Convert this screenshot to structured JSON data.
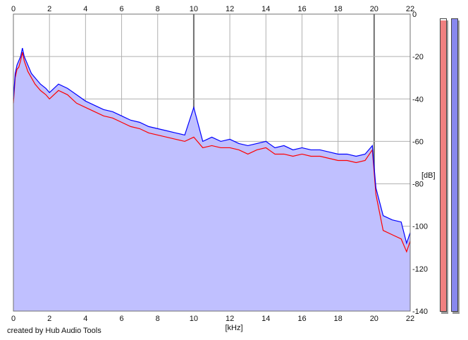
{
  "chart_data": {
    "type": "line",
    "xlabel": "[kHz]",
    "ylabel": "[dB]",
    "xlim": [
      0,
      22
    ],
    "ylim": [
      -140,
      0
    ],
    "x_ticks": [
      0,
      2,
      4,
      6,
      8,
      10,
      12,
      14,
      16,
      18,
      20,
      22
    ],
    "y_ticks": [
      0,
      -20,
      -40,
      -60,
      -80,
      -100,
      -120,
      -140
    ],
    "grid": true,
    "fill_color": "#c0c0ff",
    "series": [
      {
        "color": "#ff0000",
        "x": [
          0,
          0.1,
          0.2,
          0.3,
          0.4,
          0.5,
          0.6,
          0.8,
          1,
          1.2,
          1.5,
          1.8,
          2,
          2.5,
          3,
          3.5,
          4,
          4.5,
          5,
          5.5,
          6,
          6.5,
          7,
          7.5,
          8,
          8.5,
          9,
          9.5,
          10,
          10.5,
          11,
          11.5,
          12,
          12.5,
          13,
          13.5,
          14,
          14.5,
          15,
          15.5,
          16,
          16.5,
          17,
          17.5,
          18,
          18.5,
          19,
          19.5,
          19.9,
          20.1,
          20.5,
          21,
          21.5,
          21.8,
          22
        ],
        "values": [
          -42,
          -30,
          -26,
          -25,
          -22,
          -18,
          -22,
          -27,
          -30,
          -33,
          -36,
          -38,
          -40,
          -36,
          -38,
          -42,
          -44,
          -46,
          -48,
          -49,
          -51,
          -53,
          -54,
          -56,
          -57,
          -58,
          -59,
          -60,
          -58,
          -63,
          -62,
          -63,
          -63,
          -64,
          -66,
          -64,
          -63,
          -66,
          -66,
          -67,
          -66,
          -67,
          -67,
          -68,
          -69,
          -69,
          -70,
          -69,
          -64,
          -85,
          -102,
          -104,
          -106,
          -112,
          -107
        ]
      },
      {
        "color": "#0000ff",
        "x": [
          0,
          0.1,
          0.2,
          0.3,
          0.4,
          0.5,
          0.6,
          0.8,
          1,
          1.2,
          1.5,
          1.8,
          2,
          2.5,
          3,
          3.5,
          4,
          4.5,
          5,
          5.5,
          6,
          6.5,
          7,
          7.5,
          8,
          8.5,
          9,
          9.5,
          10,
          10.5,
          11,
          11.5,
          12,
          12.5,
          13,
          13.5,
          14,
          14.5,
          15,
          15.5,
          16,
          16.5,
          17,
          17.5,
          18,
          18.5,
          19,
          19.5,
          19.9,
          20.1,
          20.5,
          21,
          21.5,
          21.8,
          22
        ],
        "values": [
          -40,
          -28,
          -24,
          -22,
          -20,
          -16,
          -20,
          -24,
          -28,
          -30,
          -33,
          -35,
          -37,
          -33,
          -35,
          -38,
          -41,
          -43,
          -45,
          -46,
          -48,
          -50,
          -51,
          -53,
          -54,
          -55,
          -56,
          -57,
          -44,
          -60,
          -58,
          -60,
          -59,
          -61,
          -62,
          -61,
          -60,
          -63,
          -62,
          -64,
          -63,
          -64,
          -64,
          -65,
          -66,
          -66,
          -67,
          -66,
          -62,
          -82,
          -95,
          -97,
          -98,
          -108,
          -103
        ]
      }
    ],
    "level_meters": [
      {
        "color": "#f08080",
        "level": 0.995
      },
      {
        "color": "#8888ee",
        "level": 1.0
      }
    ]
  },
  "footer": {
    "credit": "created by Hub Audio Tools"
  }
}
